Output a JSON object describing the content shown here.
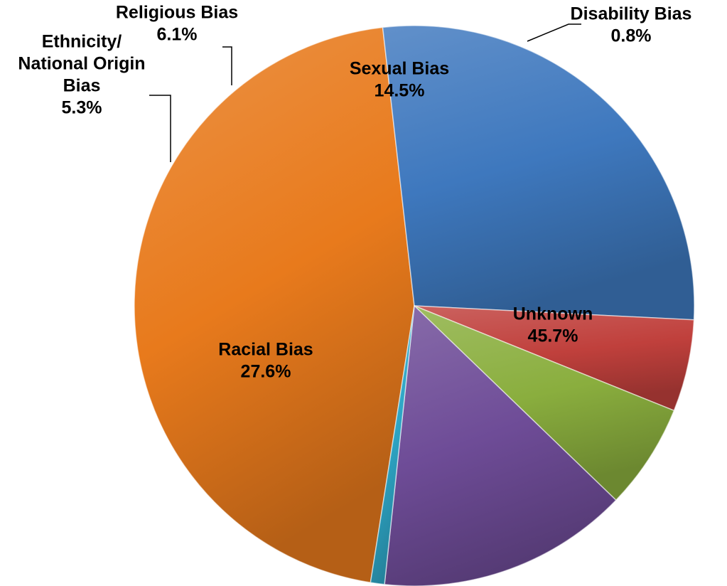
{
  "chart_data": {
    "type": "pie",
    "title": "",
    "slices": [
      {
        "label": "Unknown",
        "value": 45.7,
        "value_label": "45.7%",
        "color": "#E87A1C",
        "label_lines": [
          "Unknown"
        ]
      },
      {
        "label": "Racial Bias",
        "value": 27.6,
        "value_label": "27.6%",
        "color": "#3E78BE",
        "label_lines": [
          "Racial Bias"
        ]
      },
      {
        "label": "Ethnicity/ National Origin Bias",
        "value": 5.3,
        "value_label": "5.3%",
        "color": "#C0403C",
        "label_lines": [
          "Ethnicity/",
          "National Origin",
          "Bias"
        ]
      },
      {
        "label": "Religious Bias",
        "value": 6.1,
        "value_label": "6.1%",
        "color": "#8AAE3E",
        "label_lines": [
          "Religious Bias"
        ]
      },
      {
        "label": "Sexual Bias",
        "value": 14.5,
        "value_label": "14.5%",
        "color": "#6E4C97",
        "label_lines": [
          "Sexual Bias"
        ]
      },
      {
        "label": "Disability Bias",
        "value": 0.8,
        "value_label": "0.8%",
        "color": "#2EA6C6",
        "label_lines": [
          "Disability Bias"
        ]
      }
    ],
    "start_slice": "Unknown",
    "direction": "clockwise",
    "legend": "none",
    "data_labels": "category and percentage"
  }
}
